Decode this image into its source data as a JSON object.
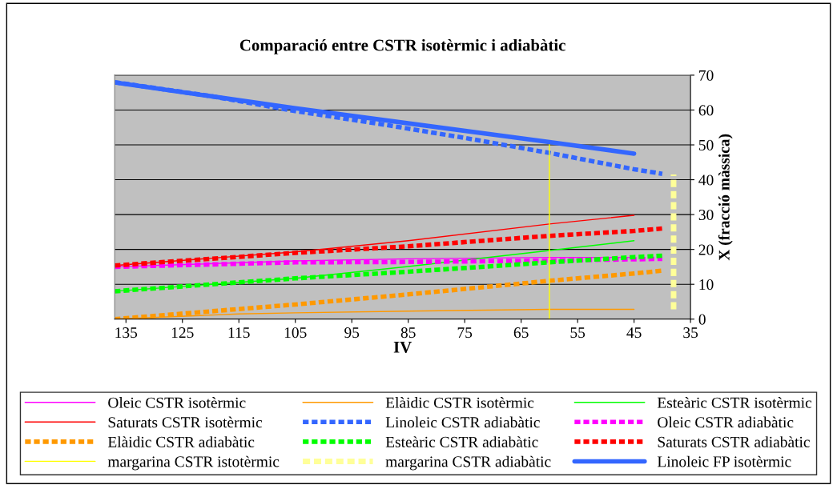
{
  "chart_data": {
    "type": "line",
    "title": "Comparació entre CSTR isotèrmic i adiabàtic",
    "xlabel": "IV",
    "ylabel": "X (fracció màssica)",
    "xlim": [
      137,
      35
    ],
    "xticks": [
      135,
      125,
      115,
      105,
      95,
      85,
      75,
      65,
      55,
      45,
      35
    ],
    "ylim": [
      0,
      70
    ],
    "yticks": [
      0,
      10,
      20,
      30,
      40,
      50,
      60,
      70
    ],
    "grid": "y",
    "legend": "bottom",
    "marker": "none",
    "series": [
      {
        "name": "Oleic CSTR isotèrmic",
        "color": "#ff00ff",
        "line_style": "solid",
        "x": [
          137,
          105,
          85,
          60,
          45
        ],
        "values": [
          15,
          16.7,
          17.3,
          17.7,
          17.7
        ]
      },
      {
        "name": "Elàidic CSTR isotèrmic",
        "color": "#ff9900",
        "line_style": "solid",
        "x": [
          137,
          115,
          105,
          85,
          60,
          45
        ],
        "values": [
          0,
          1.5,
          1.8,
          2.3,
          2.8,
          2.8
        ]
      },
      {
        "name": "Esteàric CSTR isotèrmic",
        "color": "#00ff00",
        "line_style": "solid",
        "x": [
          137,
          105,
          85,
          60,
          45
        ],
        "values": [
          8,
          11.7,
          15.1,
          19.7,
          22.5
        ]
      },
      {
        "name": "Saturats CSTR isotèrmic",
        "color": "#ff0000",
        "line_style": "solid",
        "x": [
          137,
          105,
          85,
          60,
          45
        ],
        "values": [
          15.4,
          19.3,
          22.5,
          27.3,
          29.8
        ]
      },
      {
        "name": "Linoleic CSTR adiabàtic",
        "color": "#3366ff",
        "line_style": "dashed",
        "x": [
          137,
          120,
          105,
          90,
          75,
          60,
          45,
          40
        ],
        "values": [
          68,
          64,
          59.7,
          56,
          52,
          47.7,
          43,
          41.7
        ]
      },
      {
        "name": "Oleic CSTR adiabàtic",
        "color": "#ff00ff",
        "line_style": "dashed",
        "x": [
          137,
          105,
          85,
          60,
          40
        ],
        "values": [
          15,
          16.3,
          16.4,
          16.8,
          17.3
        ]
      },
      {
        "name": "Elàidic CSTR adiabàtic",
        "color": "#ff9900",
        "line_style": "dashed",
        "x": [
          137,
          105,
          85,
          60,
          45,
          40
        ],
        "values": [
          0,
          4.2,
          7.1,
          11,
          13.1,
          13.9
        ]
      },
      {
        "name": "Esteàric CSTR adiabàtic",
        "color": "#00ff00",
        "line_style": "dashed",
        "x": [
          137,
          105,
          85,
          60,
          45,
          40
        ],
        "values": [
          8,
          11.7,
          13.6,
          16.3,
          17.8,
          18.2
        ]
      },
      {
        "name": "Saturats CSTR adiabàtic",
        "color": "#ff0000",
        "line_style": "dashed",
        "x": [
          137,
          105,
          85,
          60,
          45,
          40
        ],
        "values": [
          15.4,
          19,
          20.9,
          23.9,
          25.3,
          26
        ]
      },
      {
        "name": "margarina CSTR istotèrmic",
        "color": "#ffff00",
        "line_style": "solid",
        "x": [
          60,
          60
        ],
        "values": [
          0,
          50.8
        ]
      },
      {
        "name": "margarina CSTR adiabàtic",
        "color": "#ffff99",
        "line_style": "dashed",
        "x": [
          38,
          38
        ],
        "values": [
          2.8,
          41.5
        ]
      },
      {
        "name": "Linoleic FP isotèrmic",
        "color": "#3366ff",
        "line_style": "solid",
        "x": [
          137,
          105,
          60,
          45
        ],
        "values": [
          67.9,
          60.5,
          50.8,
          47.5
        ]
      }
    ]
  }
}
